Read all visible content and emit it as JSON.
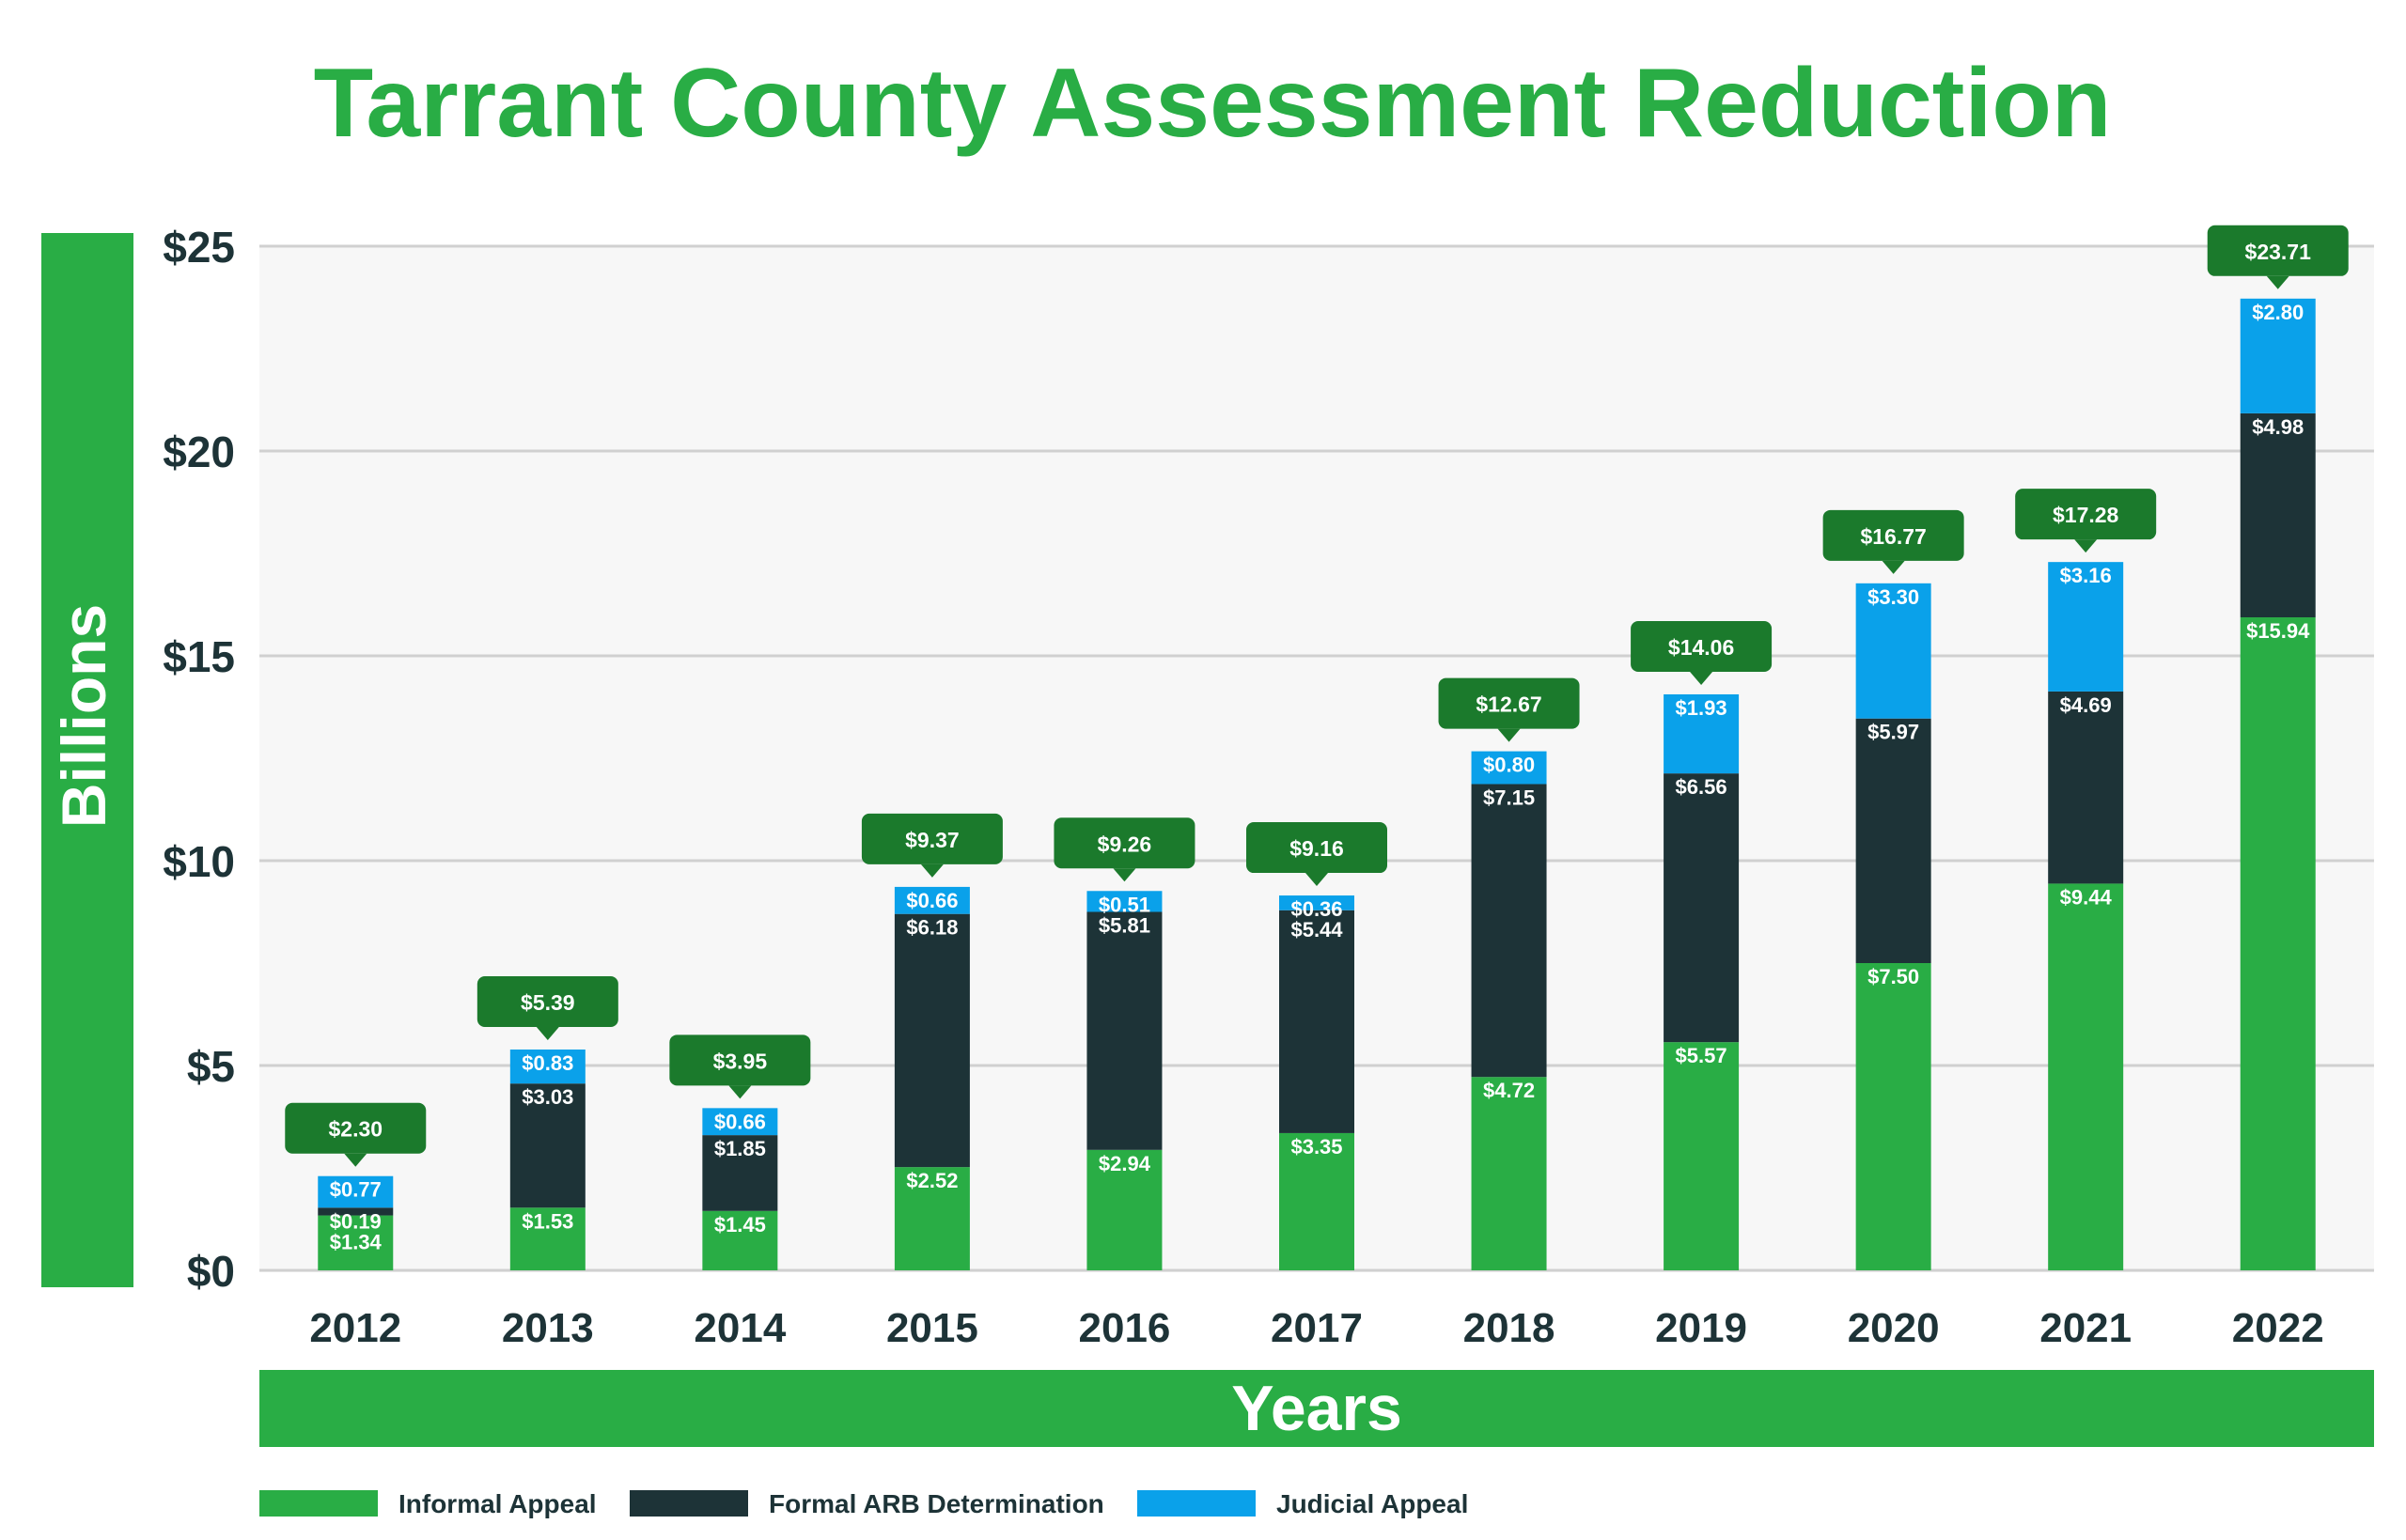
{
  "chart_data": {
    "type": "bar",
    "stacked": true,
    "title": "Tarrant County Assessment Reduction",
    "xlabel": "Years",
    "ylabel": "Billions",
    "ylim": [
      0,
      25
    ],
    "yticks": [
      0,
      5,
      10,
      15,
      20,
      25
    ],
    "ytick_labels": [
      "$0",
      "$5",
      "$10",
      "$15",
      "$20",
      "$25"
    ],
    "grid": true,
    "legend_position": "bottom-left",
    "categories": [
      "2012",
      "2013",
      "2014",
      "2015",
      "2016",
      "2017",
      "2018",
      "2019",
      "2020",
      "2021",
      "2022"
    ],
    "series": [
      {
        "name": "Informal Appeal",
        "color": "#29ad45",
        "values": [
          1.34,
          1.53,
          1.45,
          2.52,
          2.94,
          3.35,
          4.72,
          5.57,
          7.5,
          9.44,
          15.94
        ],
        "labels": [
          "$1.34",
          "$1.53",
          "$1.45",
          "$2.52",
          "$2.94",
          "$3.35",
          "$4.72",
          "$5.57",
          "$7.50",
          "$9.44",
          "$15.94"
        ]
      },
      {
        "name": "Formal ARB Determination",
        "color": "#1d3337",
        "values": [
          0.19,
          3.03,
          1.85,
          6.18,
          5.81,
          5.44,
          7.15,
          6.56,
          5.97,
          4.69,
          4.98
        ],
        "labels": [
          "$0.19",
          "$3.03",
          "$1.85",
          "$6.18",
          "$5.81",
          "$5.44",
          "$7.15",
          "$6.56",
          "$5.97",
          "$4.69",
          "$4.98"
        ]
      },
      {
        "name": "Judicial Appeal",
        "color": "#0aa1ea",
        "values": [
          0.77,
          0.83,
          0.66,
          0.66,
          0.51,
          0.36,
          0.8,
          1.93,
          3.3,
          3.16,
          2.8
        ],
        "labels": [
          "$0.77",
          "$0.83",
          "$0.66",
          "$0.66",
          "$0.51",
          "$0.36",
          "$0.80",
          "$1.93",
          "$3.30",
          "$3.16",
          "$2.80"
        ]
      }
    ],
    "totals": [
      2.3,
      5.39,
      3.95,
      9.37,
      9.26,
      9.16,
      12.67,
      14.06,
      16.77,
      17.28,
      23.71
    ],
    "total_labels": [
      "$2.30",
      "$5.39",
      "$3.95",
      "$9.37",
      "$9.26",
      "$9.16",
      "$12.67",
      "$14.06",
      "$16.77",
      "$17.28",
      "$23.71"
    ]
  },
  "colors": {
    "title": "#29ad45",
    "axis_band": "#29ad45",
    "plot_background": "#f7f7f7",
    "gridline": "#d0d0d0",
    "axis_text": "#1d3337",
    "callout": "#1b7a2c",
    "bar_label": "#ffffff"
  }
}
